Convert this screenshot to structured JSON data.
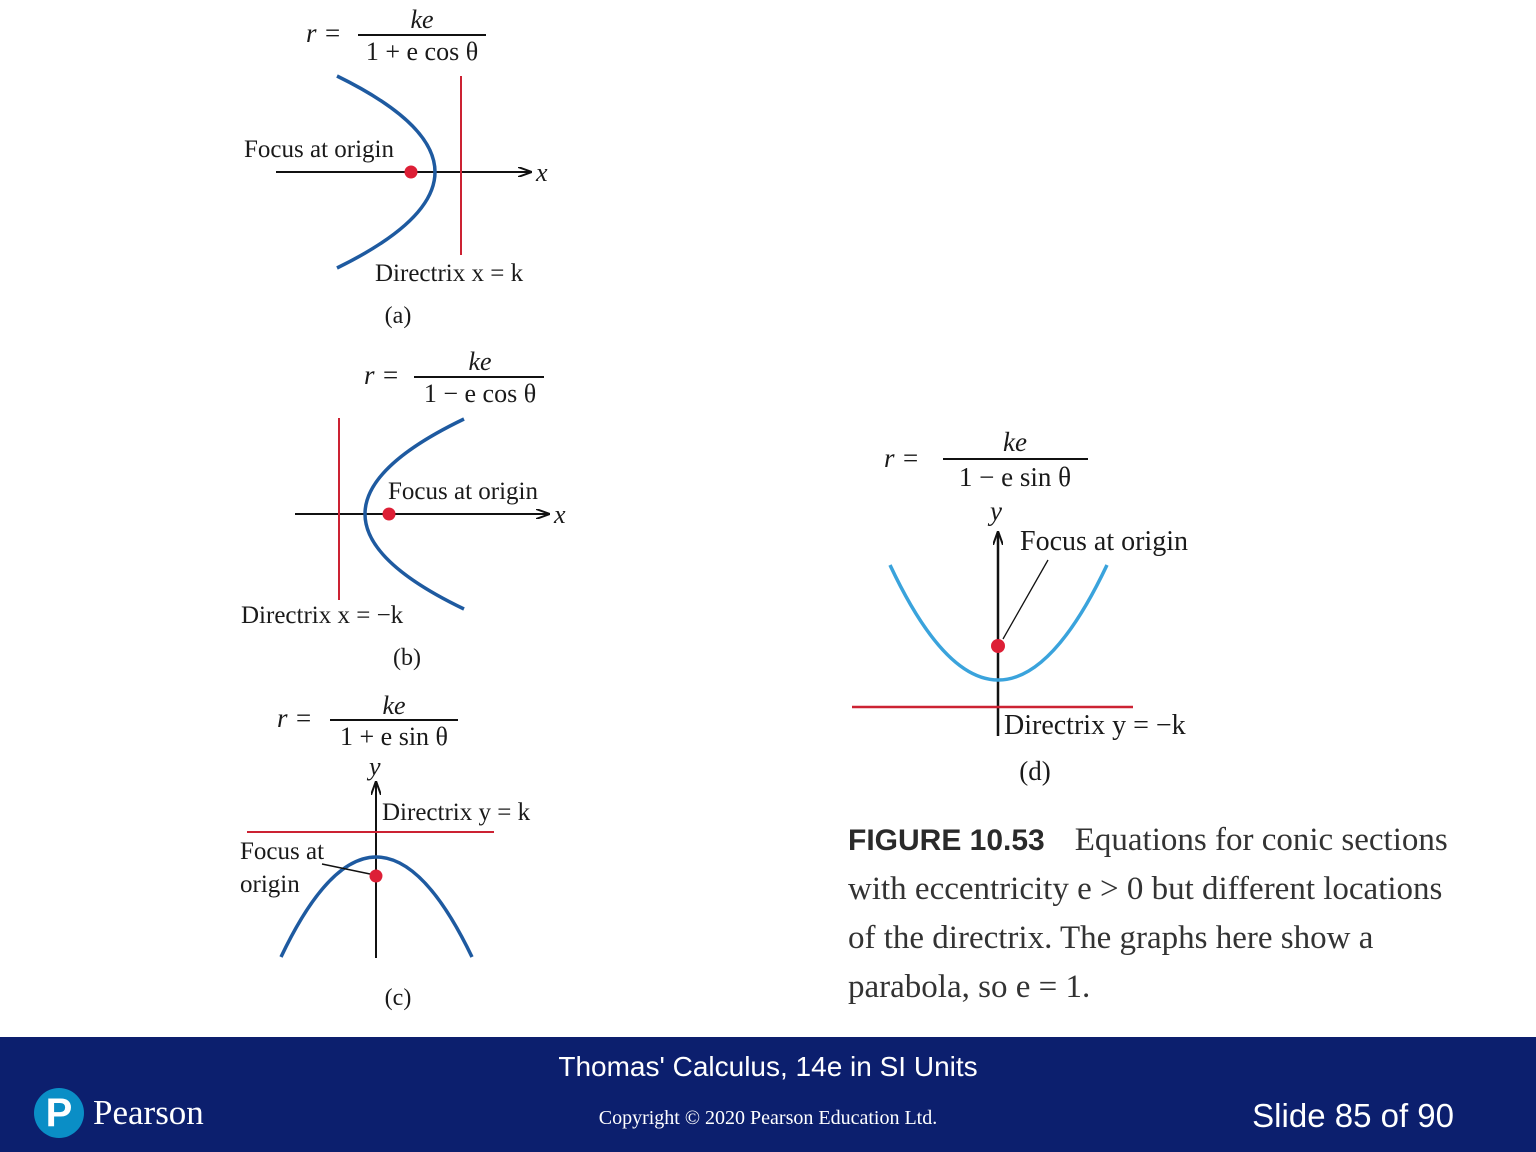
{
  "panels": {
    "a": {
      "eq_lhs": "r =",
      "eq_num": "ke",
      "eq_den": "1 + e cos θ",
      "axis_label": "x",
      "focus_label": "Focus at origin",
      "directrix_label": "Directrix x = k",
      "panel_label": "(a)"
    },
    "b": {
      "eq_lhs": "r =",
      "eq_num": "ke",
      "eq_den": "1 − e cos θ",
      "axis_label": "x",
      "focus_label": "Focus at origin",
      "directrix_label": "Directrix x = −k",
      "panel_label": "(b)"
    },
    "c": {
      "eq_lhs": "r =",
      "eq_num": "ke",
      "eq_den": "1 + e sin θ",
      "axis_label": "y",
      "focus_label_line1": "Focus at",
      "focus_label_line2": "origin",
      "directrix_label": "Directrix y = k",
      "panel_label": "(c)"
    },
    "d": {
      "eq_lhs": "r =",
      "eq_num": "ke",
      "eq_den": "1 − e sin θ",
      "axis_label": "y",
      "focus_label": "Focus at origin",
      "directrix_label": "Directrix y = −k",
      "panel_label": "(d)"
    }
  },
  "caption": {
    "figure_label": "FIGURE 10.53",
    "text": "Equations for conic sections with eccentricity e > 0 but different locations of the directrix. The graphs here show a parabola, so e = 1."
  },
  "footer": {
    "book_title": "Thomas' Calculus, 14e in SI Units",
    "copyright": "Copyright © 2020 Pearson Education Ltd.",
    "slide_number": "Slide 85 of 90",
    "logo_text": "Pearson",
    "logo_mark": "P"
  },
  "colors": {
    "curve": "#1e5aa0",
    "curve_light": "#3aa3dc",
    "directrix": "#cc2233",
    "focus": "#dd1f36",
    "footer_bg": "#0c1f6e",
    "logo_mark": "#0a8ec6"
  }
}
